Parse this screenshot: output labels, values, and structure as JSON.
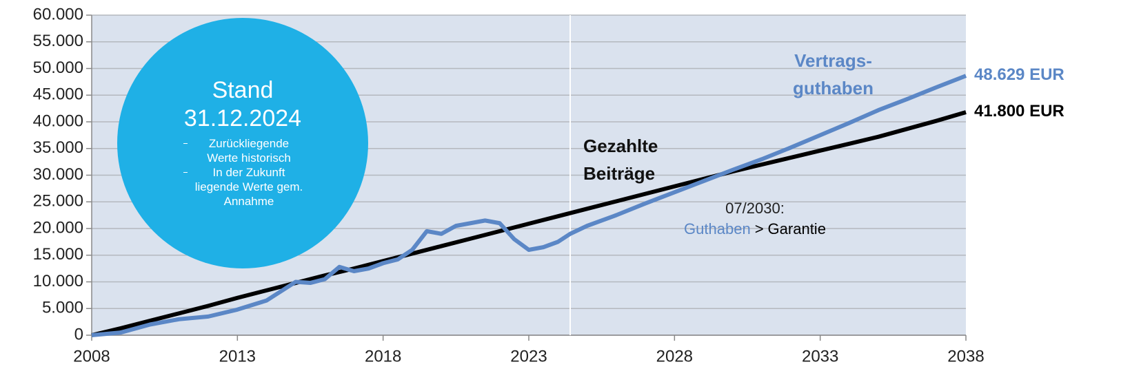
{
  "chart_data": {
    "type": "line",
    "xlim": [
      2008,
      2038
    ],
    "xticks": [
      2008,
      2013,
      2018,
      2023,
      2028,
      2033,
      2038
    ],
    "ylim": [
      0,
      60000
    ],
    "yticks": [
      0,
      {
        "value": 5000,
        "label": "5.000"
      },
      {
        "value": 10000,
        "label": "10.000"
      },
      {
        "value": 15000,
        "label": "15.000"
      },
      {
        "value": 20000,
        "label": "20.000"
      },
      {
        "value": 25000,
        "label": "25.000"
      },
      {
        "value": 30000,
        "label": "30.000"
      },
      {
        "value": 35000,
        "label": "35.000"
      },
      {
        "value": 40000,
        "label": "40.000"
      },
      {
        "value": 45000,
        "label": "45.000"
      },
      {
        "value": 50000,
        "label": "50.000"
      },
      {
        "value": 55000,
        "label": "55.000"
      },
      {
        "value": 60000,
        "label": "60.000"
      }
    ],
    "grid": true,
    "background": "#dae2ee",
    "marker_x": 2024.42,
    "series": [
      {
        "name": "Vertrags-\nguthaben",
        "color": "#5b87c6",
        "x": [
          2008,
          2009,
          2010,
          2011,
          2012,
          2013,
          2014,
          2015,
          2015.5,
          2016,
          2016.5,
          2017,
          2017.5,
          2018,
          2018.5,
          2019,
          2019.5,
          2020,
          2020.5,
          2021,
          2021.5,
          2022,
          2022.5,
          2023,
          2023.5,
          2024,
          2024.42,
          2025,
          2026,
          2027,
          2028,
          2029,
          2030,
          2031,
          2032,
          2033,
          2034,
          2035,
          2036,
          2037,
          2038
        ],
        "values": [
          0,
          500,
          2000,
          3000,
          3500,
          4800,
          6500,
          10000,
          9800,
          10500,
          12800,
          12000,
          12500,
          13500,
          14200,
          16000,
          19500,
          19000,
          20500,
          21000,
          21500,
          21000,
          18000,
          16000,
          16500,
          17500,
          19000,
          20500,
          22500,
          24700,
          26800,
          28900,
          31000,
          33000,
          35200,
          37500,
          39800,
          42200,
          44300,
          46500,
          48629
        ],
        "value_labels": [
          null,
          null,
          null,
          null,
          null,
          null,
          null,
          null,
          null,
          null,
          null,
          null,
          null,
          null,
          null,
          null,
          null,
          null,
          null,
          null,
          null,
          null,
          null,
          null,
          null,
          null,
          null,
          null,
          null,
          null,
          null,
          null,
          null,
          null,
          null,
          null,
          null,
          null,
          null,
          null,
          "48.629 EUR"
        ]
      },
      {
        "name": "Gezahlte\nBeiträge",
        "color": "#000000",
        "x": [
          2008,
          2009,
          2010,
          2011,
          2012,
          2013,
          2014,
          2015,
          2016,
          2017,
          2018,
          2019,
          2020,
          2021,
          2022,
          2023,
          2024,
          2025,
          2026,
          2027,
          2028,
          2029,
          2030,
          2031,
          2032,
          2033,
          2034,
          2035,
          2036,
          2037,
          2038
        ],
        "values": [
          0,
          1300,
          2700,
          4100,
          5500,
          7000,
          8400,
          9800,
          11200,
          12500,
          13900,
          15300,
          16700,
          18100,
          19500,
          20900,
          22300,
          23700,
          25100,
          26500,
          27900,
          29300,
          30700,
          32000,
          33300,
          34600,
          35900,
          37200,
          38700,
          40200,
          41800
        ],
        "value_labels": [
          null,
          null,
          null,
          null,
          null,
          null,
          null,
          null,
          null,
          null,
          null,
          null,
          null,
          null,
          null,
          null,
          null,
          null,
          null,
          null,
          null,
          null,
          null,
          null,
          null,
          null,
          null,
          null,
          null,
          null,
          "41.800 EUR"
        ]
      }
    ],
    "annotation": {
      "date": "07/2030:",
      "left": "Guthaben",
      "sign": ">",
      "right": "Garantie"
    },
    "circle": {
      "title": "Stand",
      "date": "31.12.2024",
      "bullets": [
        "Zurückliegende Werte historisch",
        "In der Zukunft liegende Werte gem. Annahme"
      ]
    }
  }
}
